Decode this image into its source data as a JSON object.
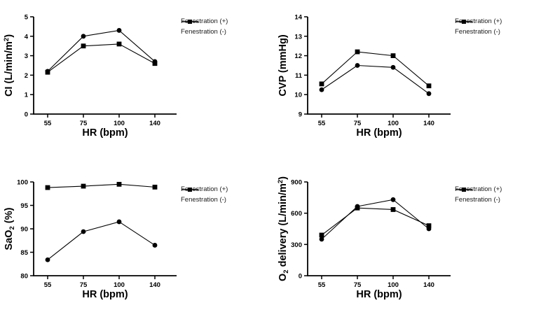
{
  "page": {
    "background": "#ffffff",
    "foreground": "#000000"
  },
  "chart_data": [
    {
      "id": "ci",
      "type": "line",
      "title": "",
      "xlabel": "HR  (bpm)",
      "ylabel": "CI (L/min/m2)",
      "ylabel_parts": [
        {
          "text": "CI (L/min/m"
        },
        {
          "text": "2",
          "style": "sup"
        },
        {
          "text": ")"
        }
      ],
      "x_categories": [
        "55",
        "75",
        "100",
        "140"
      ],
      "ylim": [
        0,
        5
      ],
      "yticks": [
        "0",
        "1",
        "2",
        "3",
        "4",
        "5"
      ],
      "grid": false,
      "legend_position": "right-top",
      "series": [
        {
          "name": "Fenestration (+)",
          "marker": "circle",
          "values": [
            2.2,
            4.0,
            4.3,
            2.7
          ]
        },
        {
          "name": "Fenestration (-)",
          "marker": "square",
          "values": [
            2.15,
            3.5,
            3.6,
            2.6
          ]
        }
      ]
    },
    {
      "id": "cvp",
      "type": "line",
      "title": "",
      "xlabel": "HR (bpm)",
      "ylabel": "CVP (mmHg)",
      "ylabel_parts": [
        {
          "text": "CVP (mmHg)"
        }
      ],
      "x_categories": [
        "55",
        "75",
        "100",
        "140"
      ],
      "ylim": [
        9,
        14
      ],
      "yticks": [
        "9",
        "10",
        "11",
        "12",
        "13",
        "14"
      ],
      "grid": false,
      "legend_position": "right-top",
      "series": [
        {
          "name": "Fenestration (+)",
          "marker": "circle",
          "values": [
            10.25,
            11.5,
            11.4,
            10.05
          ]
        },
        {
          "name": "Fenestration (-)",
          "marker": "square",
          "values": [
            10.55,
            12.2,
            12.0,
            10.45
          ]
        }
      ]
    },
    {
      "id": "sao2",
      "type": "line",
      "title": "",
      "xlabel": "HR (bpm)",
      "ylabel": "SaO2 (%)",
      "ylabel_parts": [
        {
          "text": "SaO"
        },
        {
          "text": "2",
          "style": "sub"
        },
        {
          "text": " (%)"
        }
      ],
      "x_categories": [
        "55",
        "75",
        "100",
        "140"
      ],
      "ylim": [
        80,
        100
      ],
      "yticks": [
        "80",
        "85",
        "90",
        "95",
        "100"
      ],
      "grid": false,
      "legend_position": "right-top",
      "series": [
        {
          "name": "Fenestration (+)",
          "marker": "circle",
          "values": [
            83.4,
            89.4,
            91.5,
            86.5
          ]
        },
        {
          "name": "Fenestration (-)",
          "marker": "square",
          "values": [
            98.8,
            99.1,
            99.5,
            98.9
          ]
        }
      ]
    },
    {
      "id": "o2-delivery",
      "type": "line",
      "title": "",
      "xlabel": "HR (bpm)",
      "ylabel": "O2 delivery (L/min/m2)",
      "ylabel_parts": [
        {
          "text": "O"
        },
        {
          "text": "2",
          "style": "sub"
        },
        {
          "text": " delivery (L/min/m"
        },
        {
          "text": "2",
          "style": "sup"
        },
        {
          "text": ")"
        }
      ],
      "x_categories": [
        "55",
        "75",
        "100",
        "140"
      ],
      "ylim": [
        0,
        900
      ],
      "yticks": [
        "0",
        "300",
        "600",
        "900"
      ],
      "grid": false,
      "legend_position": "right-top",
      "series": [
        {
          "name": "Fenestration (+)",
          "marker": "circle",
          "values": [
            350,
            665,
            730,
            450
          ]
        },
        {
          "name": "Fenestration (-)",
          "marker": "square",
          "values": [
            390,
            650,
            635,
            480
          ]
        }
      ]
    }
  ]
}
